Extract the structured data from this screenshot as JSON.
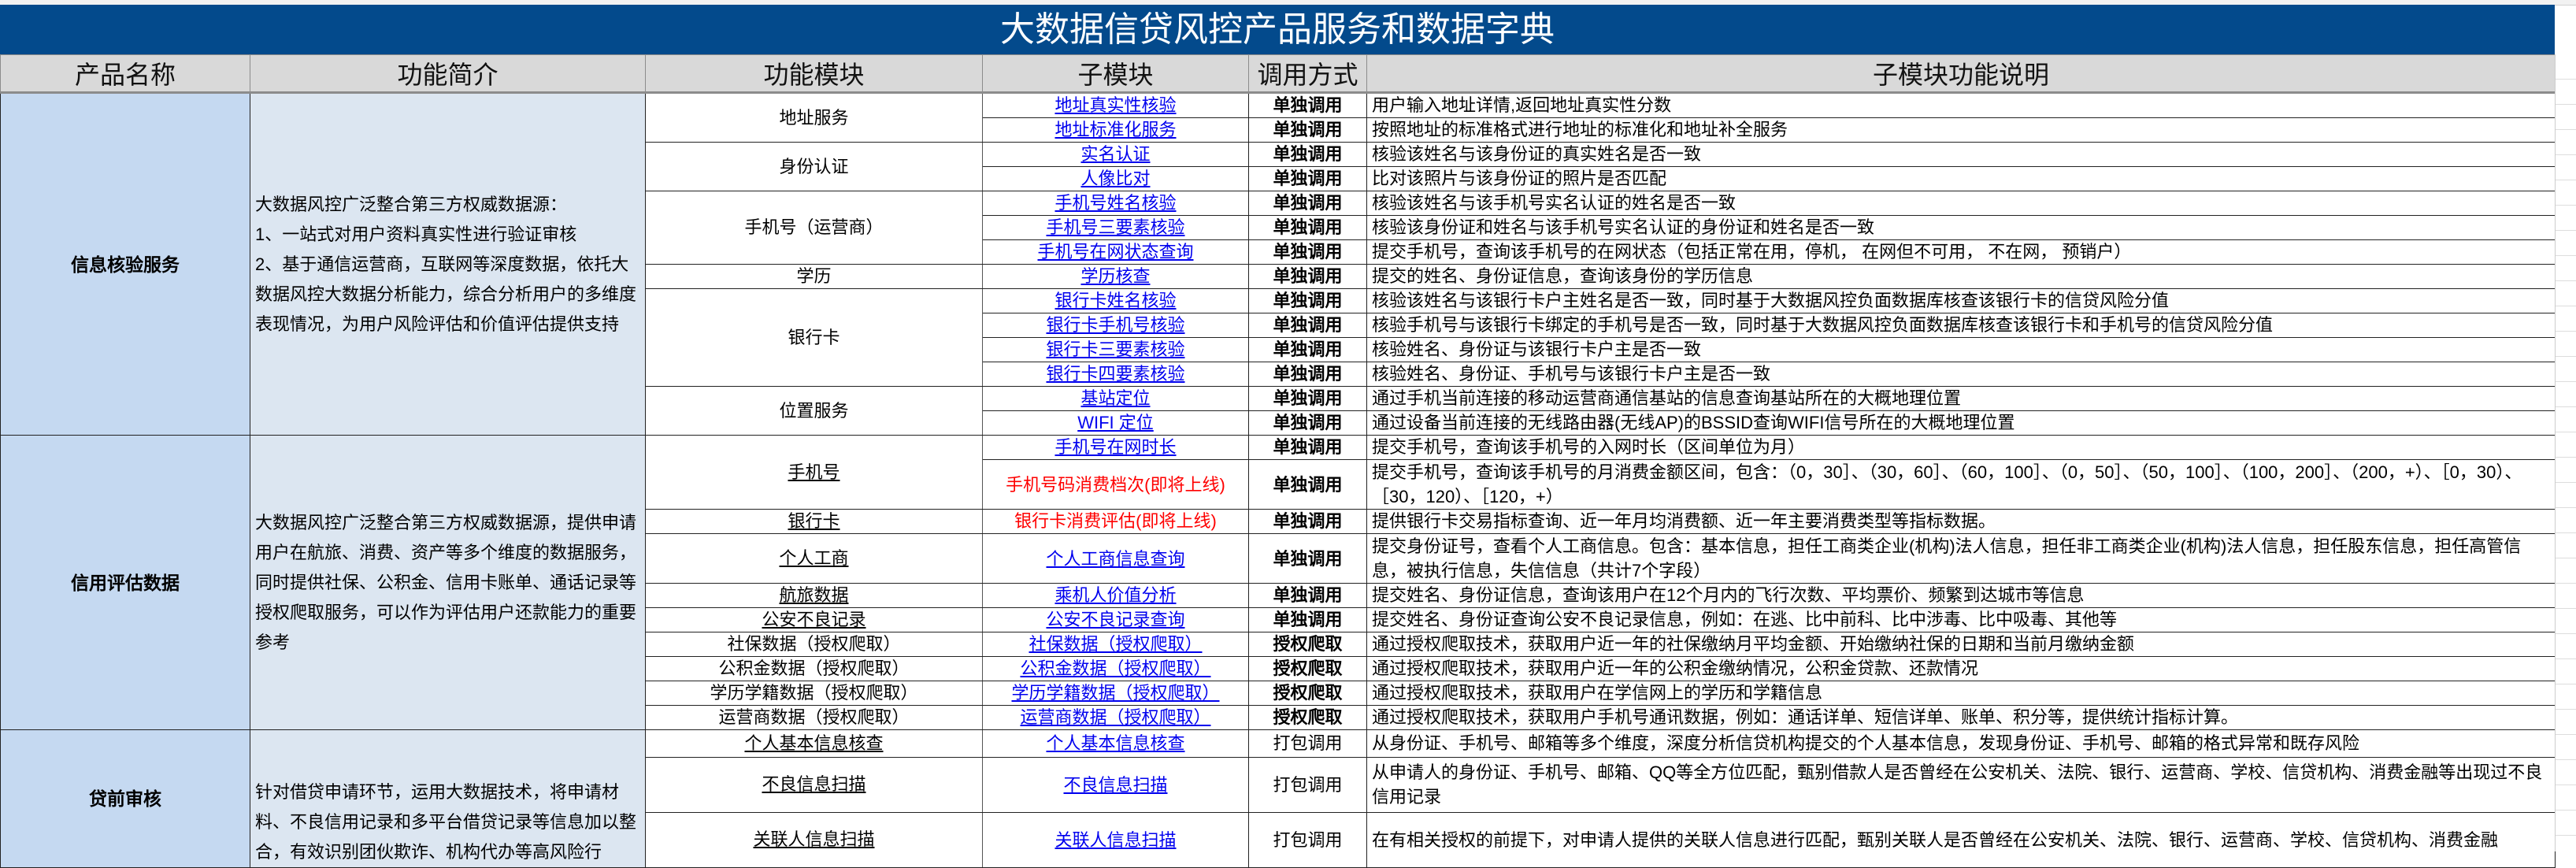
{
  "title": "大数据信贷风控产品服务和数据字典",
  "colors": {
    "title_bg": "#034a8c",
    "header_bg": "#d9d9d9",
    "product_bg": "#c5d9f1",
    "intro_bg": "#dce6f1",
    "link": "#0000ee",
    "upcoming": "#ff0000"
  },
  "headers": [
    "产品名称",
    "功能简介",
    "功能模块",
    "子模块",
    "调用方式",
    "子模块功能说明"
  ],
  "sections": [
    {
      "name": "信息核验服务",
      "intro": "大数据风控广泛整合第三方权威数据源：\n1、一站式对用户资料真实性进行验证审核\n2、基于通信运营商，互联网等深度数据，依托大数据风控大数据分析能力，综合分析用户的多维度表现情况，为用户风险评估和价值评估提供支持",
      "modules": [
        {
          "name": "地址服务",
          "subs": [
            {
              "name": "地址真实性核验",
              "method": "单独调用",
              "desc": "用户输入地址详情,返回地址真实性分数"
            },
            {
              "name": "地址标准化服务",
              "method": "单独调用",
              "desc": "按照地址的标准格式进行地址的标准化和地址补全服务"
            }
          ]
        },
        {
          "name": "身份认证",
          "subs": [
            {
              "name": "实名认证",
              "method": "单独调用",
              "desc": "核验该姓名与该身份证的真实姓名是否一致"
            },
            {
              "name": "人像比对",
              "method": "单独调用",
              "desc": "比对该照片与该身份证的照片是否匹配"
            }
          ]
        },
        {
          "name": "手机号（运营商）",
          "subs": [
            {
              "name": "手机号姓名核验",
              "method": "单独调用",
              "desc": "核验该姓名与该手机号实名认证的姓名是否一致"
            },
            {
              "name": "手机号三要素核验",
              "method": "单独调用",
              "desc": "核验该身份证和姓名与该手机号实名认证的身份证和姓名是否一致"
            },
            {
              "name": "手机号在网状态查询",
              "method": "单独调用",
              "desc": "提交手机号，查询该手机号的在网状态（包括正常在用，停机， 在网但不可用， 不在网， 预销户）"
            }
          ]
        },
        {
          "name": "学历",
          "subs": [
            {
              "name": "学历核查",
              "method": "单独调用",
              "desc": "提交的姓名、身份证信息，查询该身份的学历信息"
            }
          ]
        },
        {
          "name": "银行卡",
          "subs": [
            {
              "name": "银行卡姓名核验",
              "method": "单独调用",
              "desc": "核验该姓名与该银行卡户主姓名是否一致，同时基于大数据风控负面数据库核查该银行卡的信贷风险分值"
            },
            {
              "name": "银行卡手机号核验",
              "method": "单独调用",
              "desc": "核验手机号与该银行卡绑定的手机号是否一致，同时基于大数据风控负面数据库核查该银行卡和手机号的信贷风险分值"
            },
            {
              "name": "银行卡三要素核验",
              "method": "单独调用",
              "desc": "核验姓名、身份证与该银行卡户主是否一致"
            },
            {
              "name": "银行卡四要素核验",
              "method": "单独调用",
              "desc": "核验姓名、身份证、手机号与该银行卡户主是否一致"
            }
          ]
        },
        {
          "name": "位置服务",
          "subs": [
            {
              "name": "基站定位",
              "method": "单独调用",
              "desc": "通过手机当前连接的移动运营商通信基站的信息查询基站所在的大概地理位置"
            },
            {
              "name": "WIFI 定位",
              "method": "单独调用",
              "desc": "通过设备当前连接的无线路由器(无线AP)的BSSID查询WIFI信号所在的大概地理位置"
            }
          ]
        }
      ]
    },
    {
      "name": "信用评估数据",
      "intro": "大数据风控广泛整合第三方权威数据源，提供申请用户在航旅、消费、资产等多个维度的数据服务，同时提供社保、公积金、信用卡账单、通话记录等授权爬取服务，可以作为评估用户还款能力的重要参考",
      "modules": [
        {
          "name": "手机号",
          "underline": true,
          "subs": [
            {
              "name": "手机号在网时长",
              "method": "单独调用",
              "desc": "提交手机号，查询该手机号的入网时长（区间单位为月）"
            },
            {
              "name": "手机号码消费档次(即将上线)",
              "upcoming": true,
              "tall": true,
              "method": "单独调用",
              "desc": "提交手机号，查询该手机号的月消费金额区间，包含：（0，30］、（30，60］、（60，100］、（0，50］、（50，100］、（100，200］、（200，+）、［0，30）、［30，120）、［120，+）"
            }
          ]
        },
        {
          "name": "银行卡",
          "underline": true,
          "subs": [
            {
              "name": "银行卡消费评估(即将上线)",
              "upcoming": true,
              "method": "单独调用",
              "desc": "提供银行卡交易指标查询、近一年月均消费额、近一年主要消费类型等指标数据。"
            }
          ]
        },
        {
          "name": "个人工商",
          "underline": true,
          "subs": [
            {
              "name": "个人工商信息查询",
              "tall": true,
              "method": "单独调用",
              "desc": "提交身份证号，查看个人工商信息。包含：基本信息，担任工商类企业(机构)法人信息，担任非工商类企业(机构)法人信息，担任股东信息，担任高管信息，被执行信息，失信信息（共计7个字段）"
            }
          ]
        },
        {
          "name": "航旅数据",
          "underline": true,
          "subs": [
            {
              "name": "乘机人价值分析",
              "method": "单独调用",
              "desc": "提交姓名、身份证信息，查询该用户在12个月内的飞行次数、平均票价、频繁到达城市等信息"
            }
          ]
        },
        {
          "name": "公安不良记录",
          "underline": true,
          "subs": [
            {
              "name": "公安不良记录查询",
              "method": "单独调用",
              "desc": "提交姓名、身份证查询公安不良记录信息，例如：在逃、比中前科、比中涉毒、比中吸毒、其他等"
            }
          ]
        },
        {
          "name": "社保数据（授权爬取）",
          "subs": [
            {
              "name": "社保数据（授权爬取）",
              "method": "授权爬取",
              "desc": "通过授权爬取技术，获取用户近一年的社保缴纳月平均金额、开始缴纳社保的日期和当前月缴纳金额"
            }
          ]
        },
        {
          "name": "公积金数据（授权爬取）",
          "subs": [
            {
              "name": "公积金数据（授权爬取）",
              "method": "授权爬取",
              "desc": "通过授权爬取技术，获取用户近一年的公积金缴纳情况，公积金贷款、还款情况"
            }
          ]
        },
        {
          "name": "学历学籍数据（授权爬取）",
          "subs": [
            {
              "name": "学历学籍数据（授权爬取）",
              "method": "授权爬取",
              "desc": "通过授权爬取技术，获取用户在学信网上的学历和学籍信息"
            }
          ]
        },
        {
          "name": "运营商数据（授权爬取）",
          "subs": [
            {
              "name": "运营商数据（授权爬取）",
              "method": "授权爬取",
              "desc": "通过授权爬取技术，获取用户手机号通讯数据，例如：通话详单、短信详单、账单、积分等，提供统计指标计算。"
            }
          ]
        }
      ]
    },
    {
      "name": "贷前审核",
      "intro": "针对借贷申请环节，运用大数据技术，将申请材料、不良信用记录和多平台借贷记录等信息加以整合，有效识别团伙欺诈、机构代办等高风险行",
      "modules": [
        {
          "name": "个人基本信息核查",
          "underline": true,
          "subs": [
            {
              "name": "个人基本信息核查",
              "method": "打包调用",
              "plain": true,
              "desc": "从身份证、手机号、邮箱等多个维度，深度分析信贷机构提交的个人基本信息，发现身份证、手机号、邮箱的格式异常和既存风险"
            }
          ]
        },
        {
          "name": "不良信息扫描",
          "underline": true,
          "subs": [
            {
              "name": "不良信息扫描",
              "tall": true,
              "method": "打包调用",
              "plain": true,
              "desc": "从申请人的身份证、手机号、邮箱、QQ等全方位匹配，甄别借款人是否曾经在公安机关、法院、银行、运营商、学校、信贷机构、消费金融等出现过不良信用记录"
            }
          ]
        },
        {
          "name": "关联人信息扫描",
          "underline": true,
          "subs": [
            {
              "name": "关联人信息扫描",
              "tall": true,
              "method": "打包调用",
              "plain": true,
              "desc": "在有相关授权的前提下，对申请人提供的关联人信息进行匹配，甄别关联人是否曾经在公安机关、法院、银行、运营商、学校、信贷机构、消费金融"
            }
          ]
        }
      ]
    }
  ]
}
